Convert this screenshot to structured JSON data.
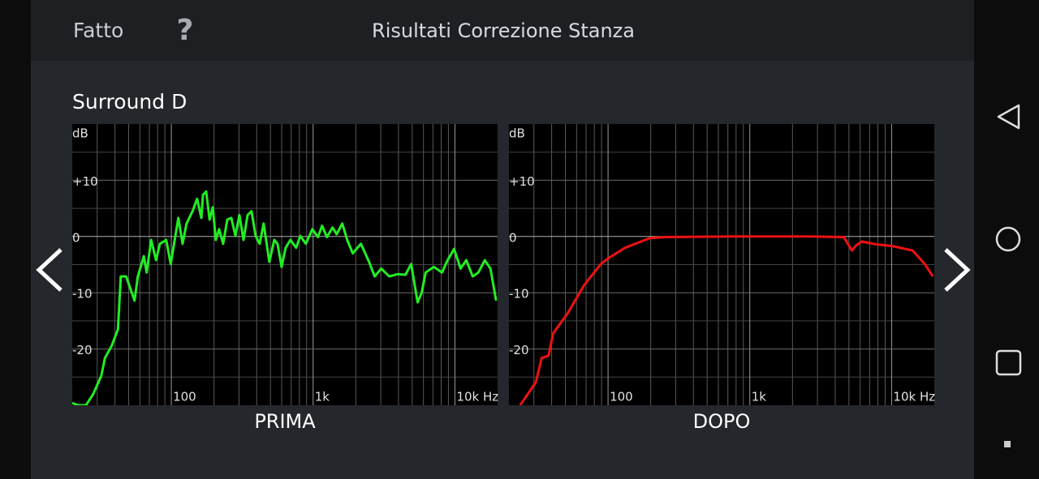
{
  "header": {
    "done": "Fatto",
    "help": "?",
    "title": "Risultati Correzione Stanza"
  },
  "section_title": "Surround D",
  "chart_data": [
    {
      "type": "line",
      "caption": "PRIMA",
      "y_unit_label": "dB",
      "xscale": "log",
      "grid": true,
      "xlim": [
        20,
        20000
      ],
      "ylim": [
        -30,
        20
      ],
      "xticks": [
        100,
        {
          "value": 1000,
          "label": "1k"
        },
        {
          "value": 10000,
          "label": "10k Hz"
        }
      ],
      "yticks": [
        {
          "value": 10,
          "label": "+10"
        },
        0,
        -10,
        -20
      ],
      "x_minor_ticks": [
        30,
        40,
        50,
        60,
        70,
        80,
        90,
        200,
        300,
        400,
        500,
        600,
        700,
        800,
        900,
        2000,
        3000,
        4000,
        5000,
        6000,
        7000,
        8000,
        9000
      ],
      "y_minor_ticks": [
        15,
        5,
        -5,
        -15,
        -25
      ],
      "x": [
        20,
        22,
        25,
        28,
        32,
        34,
        38,
        42,
        44,
        48,
        55,
        58,
        64,
        67,
        72,
        78,
        83,
        92,
        99,
        105,
        112,
        120,
        128,
        141,
        152,
        163,
        167,
        176,
        186,
        196,
        206,
        217,
        232,
        248,
        265,
        283,
        302,
        323,
        345,
        368,
        393,
        420,
        448,
        491,
        532,
        561,
        599,
        640,
        692,
        759,
        811,
        889,
        987,
        1082,
        1156,
        1250,
        1371,
        1465,
        1607,
        1738,
        1905,
        2173,
        2479,
        2718,
        3020,
        3445,
        3929,
        4481,
        4911,
        5456,
        5834,
        6223,
        7097,
        8110,
        8892,
        9860,
        10965,
        12023,
        13366,
        14655,
        16255,
        17820,
        19540
      ],
      "series": [
        {
          "color": "#22ee22",
          "values": [
            -29.6,
            -30,
            -30,
            -28.1,
            -24.8,
            -21.6,
            -19.4,
            -16.5,
            -7.1,
            -7.1,
            -11.4,
            -7.1,
            -3.5,
            -6.4,
            -0.6,
            -4.2,
            -1.3,
            -0.6,
            -4.9,
            -1.0,
            3.3,
            -1.3,
            2.3,
            4.5,
            6.7,
            3.3,
            7.4,
            8.0,
            3.0,
            5.2,
            -0.6,
            1.3,
            -1.3,
            3.0,
            3.3,
            0.1,
            3.8,
            -0.6,
            3.8,
            4.5,
            0.1,
            -1.3,
            2.3,
            -4.5,
            -0.6,
            -1.3,
            -5.4,
            -2.0,
            -0.6,
            -2.0,
            0.1,
            -1.3,
            1.3,
            -0.1,
            1.9,
            -0.1,
            1.6,
            0.4,
            2.3,
            -0.6,
            -3.0,
            -1.3,
            -4.5,
            -7.1,
            -5.7,
            -7.1,
            -6.7,
            -6.8,
            -4.9,
            -11.7,
            -10.0,
            -6.4,
            -5.4,
            -6.4,
            -4.2,
            -2.2,
            -5.7,
            -4.2,
            -7.1,
            -6.4,
            -4.2,
            -5.7,
            -11.4
          ]
        }
      ]
    },
    {
      "type": "line",
      "caption": "DOPO",
      "y_unit_label": "dB",
      "xscale": "log",
      "grid": true,
      "xlim": [
        20,
        20000
      ],
      "ylim": [
        -30,
        20
      ],
      "xticks": [
        100,
        {
          "value": 1000,
          "label": "1k"
        },
        {
          "value": 10000,
          "label": "10k Hz"
        }
      ],
      "yticks": [
        {
          "value": 10,
          "label": "+10"
        },
        0,
        -10,
        -20
      ],
      "x_minor_ticks": [
        30,
        40,
        50,
        60,
        70,
        80,
        90,
        200,
        300,
        400,
        500,
        600,
        700,
        800,
        900,
        2000,
        3000,
        4000,
        5000,
        6000,
        7000,
        8000,
        9000
      ],
      "y_minor_ticks": [
        15,
        5,
        -5,
        -15,
        -25
      ],
      "x": [
        24,
        31,
        34,
        38,
        41,
        52,
        68,
        89,
        100,
        132,
        171,
        196,
        255,
        729,
        2718,
        4603,
        5248,
        5610,
        6152,
        7786,
        10139,
        14080,
        17140,
        19540
      ],
      "series": [
        {
          "color": "#ee1111",
          "values": [
            -30,
            -25.9,
            -21.6,
            -21.2,
            -17.2,
            -13.6,
            -8.6,
            -4.9,
            -3.9,
            -2.0,
            -0.9,
            -0.3,
            -0.1,
            0,
            0,
            -0.1,
            -2.5,
            -1.6,
            -0.9,
            -1.4,
            -1.7,
            -2.5,
            -4.9,
            -7.1
          ]
        }
      ]
    }
  ]
}
